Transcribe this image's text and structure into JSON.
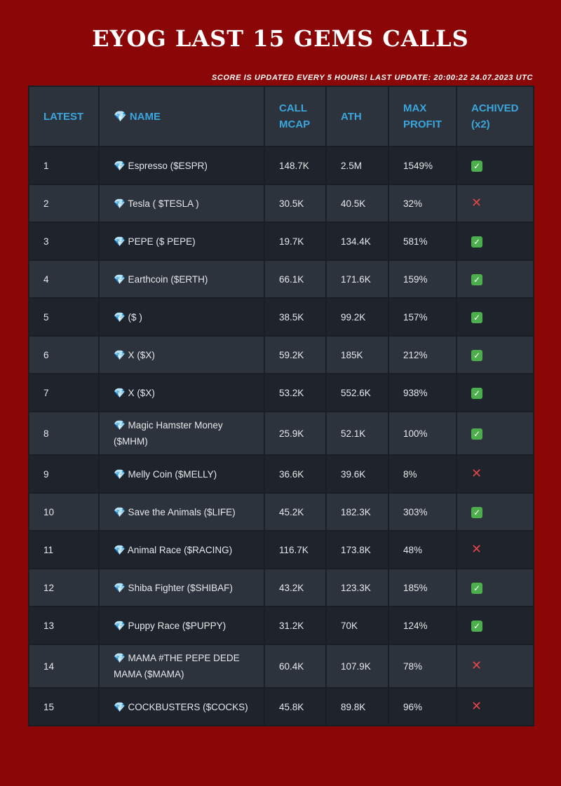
{
  "title": "EYOG LAST 15 GEMS CALLS",
  "subtitle": "SCORE IS UPDATED EVERY 5 HOURS! LAST UPDATE: 20:00:22 24.07.2023 UTC",
  "colors": {
    "background": "#8b0606",
    "header_text": "#3aa6dc",
    "row_dark": "#1f242c",
    "row_light": "#2d333d",
    "check": "#4cae4c",
    "cross": "#e2454a"
  },
  "headers": {
    "latest": "LATEST",
    "name": "💎 NAME",
    "call_mcap": "CALL MCAP",
    "ath": "ATH",
    "max_profit": "MAX PROFIT",
    "achieved": "ACHIVED (x2)"
  },
  "check_symbol": "✓",
  "cross_symbol": "✕",
  "rows": [
    {
      "latest": "1",
      "name": "💎 Espresso ($ESPR)",
      "call_mcap": "148.7K",
      "ath": "2.5M",
      "max_profit": "1549%",
      "achieved": true
    },
    {
      "latest": "2",
      "name": "💎 Tesla (  $TESLA )",
      "call_mcap": "30.5K",
      "ath": "40.5K",
      "max_profit": "32%",
      "achieved": false
    },
    {
      "latest": "3",
      "name": "💎 PEPE ($ PEPE)",
      "call_mcap": "19.7K",
      "ath": "134.4K",
      "max_profit": "581%",
      "achieved": true
    },
    {
      "latest": "4",
      "name": "💎 Earthcoin ($ERTH)",
      "call_mcap": "66.1K",
      "ath": "171.6K",
      "max_profit": "159%",
      "achieved": true
    },
    {
      "latest": "5",
      "name": "💎  ($ )",
      "call_mcap": "38.5K",
      "ath": "99.2K",
      "max_profit": "157%",
      "achieved": true
    },
    {
      "latest": "6",
      "name": "💎 X ($X)",
      "call_mcap": "59.2K",
      "ath": "185K",
      "max_profit": "212%",
      "achieved": true
    },
    {
      "latest": "7",
      "name": "💎 X ($X)",
      "call_mcap": "53.2K",
      "ath": "552.6K",
      "max_profit": "938%",
      "achieved": true
    },
    {
      "latest": "8",
      "name": "💎 Magic Hamster Money ($MHM)",
      "call_mcap": "25.9K",
      "ath": "52.1K",
      "max_profit": "100%",
      "achieved": true
    },
    {
      "latest": "9",
      "name": "💎 Melly Coin ($MELLY)",
      "call_mcap": "36.6K",
      "ath": "39.6K",
      "max_profit": "8%",
      "achieved": false
    },
    {
      "latest": "10",
      "name": "💎 Save the Animals ($LIFE)",
      "call_mcap": "45.2K",
      "ath": "182.3K",
      "max_profit": "303%",
      "achieved": true
    },
    {
      "latest": "11",
      "name": "💎 Animal Race ($RACING)",
      "call_mcap": "116.7K",
      "ath": "173.8K",
      "max_profit": "48%",
      "achieved": false
    },
    {
      "latest": "12",
      "name": "💎 Shiba Fighter ($SHIBAF)",
      "call_mcap": "43.2K",
      "ath": "123.3K",
      "max_profit": "185%",
      "achieved": true
    },
    {
      "latest": "13",
      "name": "💎 Puppy Race ($PUPPY)",
      "call_mcap": "31.2K",
      "ath": "70K",
      "max_profit": "124%",
      "achieved": true
    },
    {
      "latest": "14",
      "name": "💎 MAMA #THE PEPE DEDE MAMA ($MAMA)",
      "call_mcap": "60.4K",
      "ath": "107.9K",
      "max_profit": "78%",
      "achieved": false
    },
    {
      "latest": "15",
      "name": "💎 COCKBUSTERS ($COCKS)",
      "call_mcap": "45.8K",
      "ath": "89.8K",
      "max_profit": "96%",
      "achieved": false
    }
  ]
}
